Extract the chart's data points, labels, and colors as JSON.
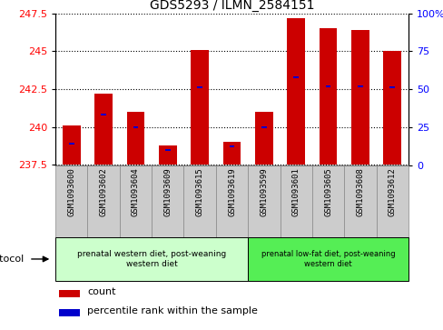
{
  "title": "GDS5293 / ILMN_2584151",
  "samples": [
    "GSM1093600",
    "GSM1093602",
    "GSM1093604",
    "GSM1093609",
    "GSM1093615",
    "GSM1093619",
    "GSM1093599",
    "GSM1093601",
    "GSM1093605",
    "GSM1093608",
    "GSM1093612"
  ],
  "count_values": [
    240.1,
    242.2,
    241.0,
    238.8,
    245.1,
    239.0,
    241.0,
    247.2,
    246.5,
    246.4,
    245.0
  ],
  "percentile_values": [
    14,
    33,
    25,
    10,
    51,
    12,
    25,
    58,
    52,
    52,
    51
  ],
  "ylim_left": [
    237.5,
    247.5
  ],
  "ylim_right": [
    0,
    100
  ],
  "yticks_left": [
    237.5,
    240.0,
    242.5,
    245.0,
    247.5
  ],
  "ytick_labels_left": [
    "237.5",
    "240",
    "242.5",
    "245",
    "247.5"
  ],
  "yticks_right": [
    0,
    25,
    50,
    75,
    100
  ],
  "ytick_labels_right": [
    "0",
    "25",
    "50",
    "75",
    "100%"
  ],
  "bar_color": "#cc0000",
  "percentile_color": "#0000cc",
  "group1_label": "prenatal western diet, post-weaning\nwestern diet",
  "group2_label": "prenatal low-fat diet, post-weaning\nwestern diet",
  "group1_color": "#ccffcc",
  "group2_color": "#55ee55",
  "group1_indices": [
    0,
    1,
    2,
    3,
    4,
    5
  ],
  "group2_indices": [
    6,
    7,
    8,
    9,
    10
  ],
  "protocol_label": "protocol",
  "legend_count_label": "count",
  "legend_pct_label": "percentile rank within the sample",
  "bar_width": 0.55,
  "base_value": 237.5,
  "tick_cell_color": "#cccccc",
  "tick_cell_border": "#888888"
}
